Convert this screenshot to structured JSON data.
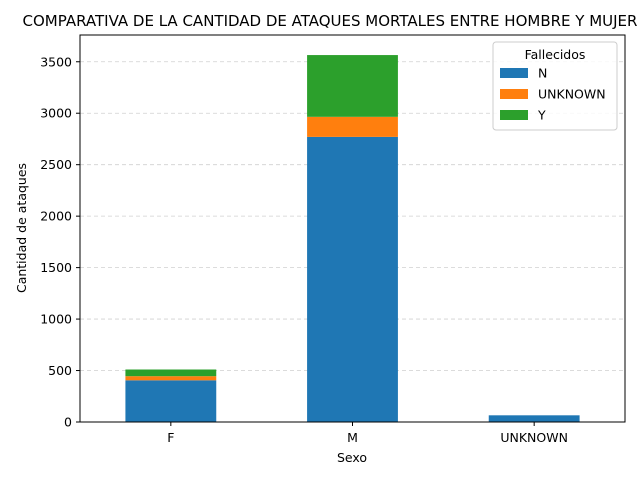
{
  "chart_data": {
    "type": "bar",
    "stacked": true,
    "title": "COMPARATIVA DE LA CANTIDAD DE ATAQUES MORTALES ENTRE HOMBRE Y MUJER",
    "xlabel": "Sexo",
    "ylabel": "Cantidad de ataques",
    "categories": [
      "F",
      "M",
      "UNKNOWN"
    ],
    "series": [
      {
        "name": "N",
        "color": "#1f77b4",
        "values": [
          405,
          2770,
          65
        ]
      },
      {
        "name": "UNKNOWN",
        "color": "#ff7f0e",
        "values": [
          40,
          195,
          0
        ]
      },
      {
        "name": "Y",
        "color": "#2ca02c",
        "values": [
          65,
          600,
          0
        ]
      }
    ],
    "ylim": [
      0,
      3760
    ],
    "yticks": [
      0,
      500,
      1000,
      1500,
      2000,
      2500,
      3000,
      3500
    ],
    "grid": "y-dashed",
    "legend": {
      "title": "Fallecidos",
      "placement": "top-right"
    }
  }
}
